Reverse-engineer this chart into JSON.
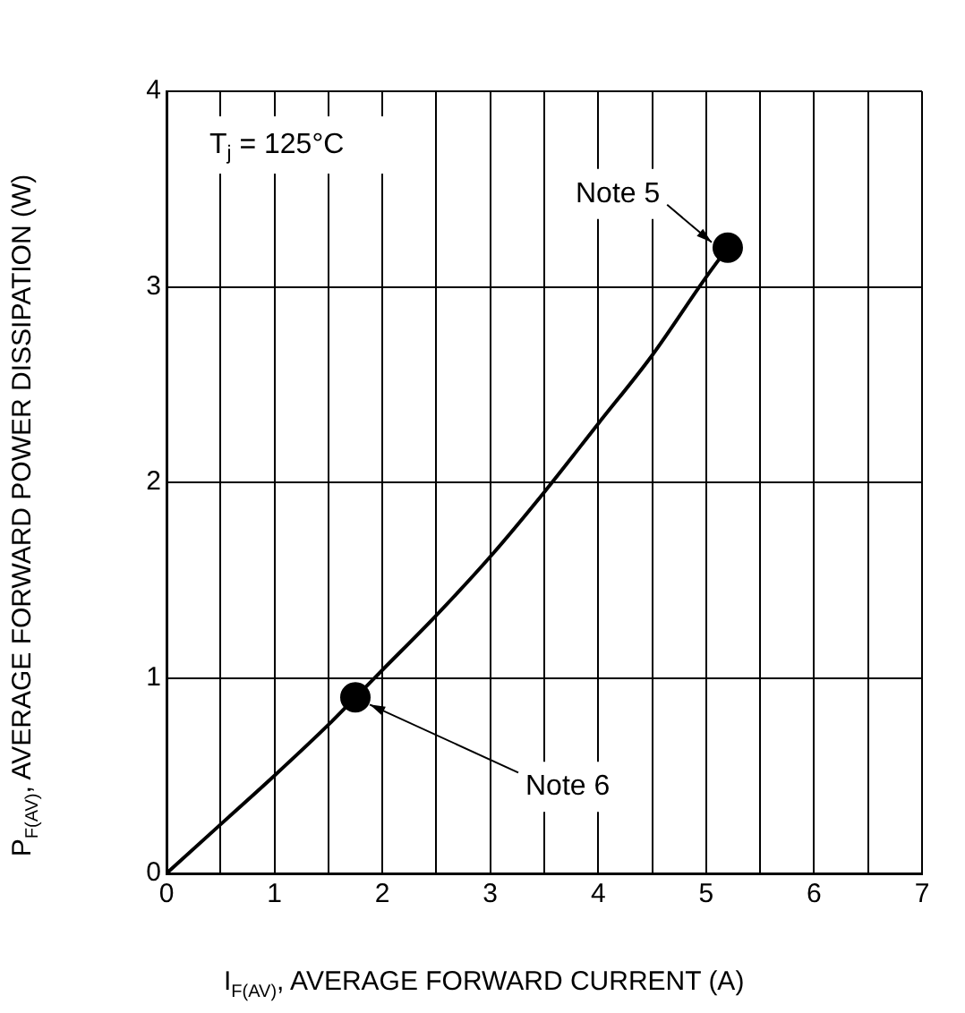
{
  "chart_data": {
    "type": "line",
    "xlabel": "I$_{F(AV)}$, AVERAGE FORWARD CURRENT (A)",
    "ylabel": "P$_{F(AV)}$, AVERAGE FORWARD POWER DISSIPATION (W)",
    "xlim": [
      0,
      7
    ],
    "ylim": [
      0,
      4
    ],
    "xticks": [
      0,
      {
        "value": 0.5,
        "label": null
      },
      1,
      {
        "value": 1.5,
        "label": null
      },
      2,
      {
        "value": 2.5,
        "label": null
      },
      3,
      {
        "value": 3.5,
        "label": null
      },
      4,
      {
        "value": 4.5,
        "label": null
      },
      5,
      {
        "value": 5.5,
        "label": null
      },
      6,
      {
        "value": 6.5,
        "label": null
      },
      7
    ],
    "yticks": [
      0,
      1,
      2,
      3,
      4
    ],
    "grid": true,
    "legend": false,
    "series": [
      {
        "color": "#000000",
        "marker": "none",
        "x": [
          0,
          0.5,
          1,
          1.5,
          1.75,
          2,
          2.5,
          3,
          3.5,
          4,
          4.5,
          5,
          5.2
        ],
        "values": [
          0,
          0.25,
          0.5,
          0.76,
          0.9,
          1.04,
          1.32,
          1.62,
          1.95,
          2.3,
          2.65,
          3.05,
          3.2
        ]
      },
      {
        "type": "scatter",
        "color": "#000000",
        "marker": "circle",
        "x": [
          1.75,
          5.2
        ],
        "values": [
          0.9,
          3.2
        ]
      }
    ],
    "annotations": [
      "T$_{j}$ = 125°C",
      {
        "text": "Note 5",
        "x": 5.2,
        "y": 3.2
      },
      {
        "text": "Note 6",
        "x": 1.75,
        "y": 0.9
      }
    ]
  }
}
